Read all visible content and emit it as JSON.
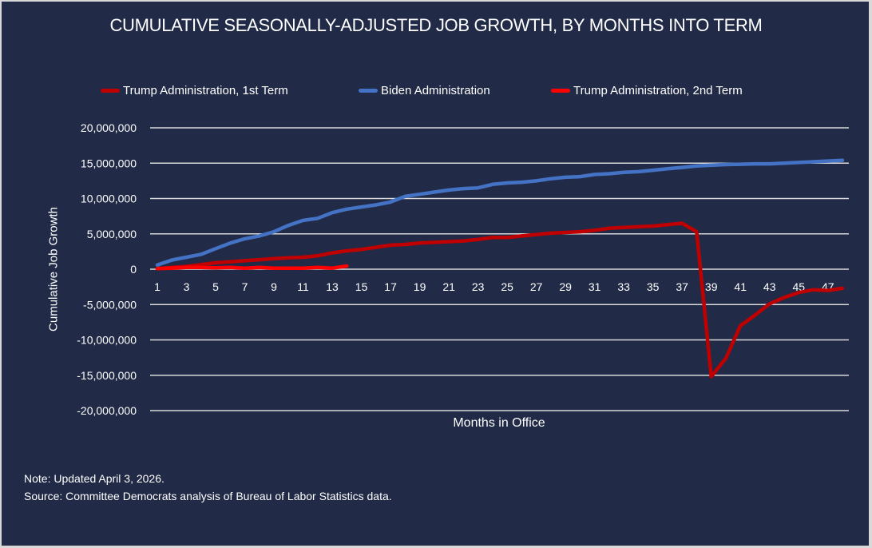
{
  "chart_data": {
    "type": "line",
    "title": "CUMULATIVE SEASONALLY-ADJUSTED JOB GROWTH, BY MONTHS INTO TERM",
    "xlabel": "Months in Office",
    "ylabel": "Cumulative Job Growth",
    "ylim": [
      -20000000,
      20000000
    ],
    "yticks": [
      20000000,
      15000000,
      10000000,
      5000000,
      0,
      -5000000,
      -10000000,
      -15000000,
      -20000000
    ],
    "ytick_labels": [
      "20,000,000",
      "15,000,000",
      "10,000,000",
      "5,000,000",
      "0",
      "-5,000,000",
      "-10,000,000",
      "-15,000,000",
      "-20,000,000"
    ],
    "xlim": [
      1,
      48
    ],
    "xtick_labels": [
      "1",
      "3",
      "5",
      "7",
      "9",
      "11",
      "13",
      "15",
      "17",
      "19",
      "21",
      "23",
      "25",
      "27",
      "29",
      "31",
      "33",
      "35",
      "37",
      "39",
      "41",
      "43",
      "45",
      "47"
    ],
    "grid": true,
    "legend_position": "top",
    "series": [
      {
        "name": "Trump Administration, 1st Term",
        "color": "#c00000",
        "x": [
          1,
          2,
          3,
          4,
          5,
          6,
          7,
          8,
          9,
          10,
          11,
          12,
          13,
          14,
          15,
          16,
          17,
          18,
          19,
          20,
          21,
          22,
          23,
          24,
          25,
          26,
          27,
          28,
          29,
          30,
          31,
          32,
          33,
          34,
          35,
          36,
          37,
          38,
          39,
          40,
          41,
          42,
          43,
          44,
          45,
          46,
          47,
          48
        ],
        "values": [
          70000,
          250000,
          400000,
          650000,
          900000,
          1050000,
          1200000,
          1350000,
          1500000,
          1600000,
          1700000,
          1900000,
          2300000,
          2600000,
          2800000,
          3100000,
          3400000,
          3500000,
          3700000,
          3800000,
          3900000,
          4000000,
          4200000,
          4500000,
          4500000,
          4700000,
          4900000,
          5100000,
          5200000,
          5300000,
          5500000,
          5800000,
          5900000,
          6000000,
          6100000,
          6300000,
          6500000,
          5300000,
          -15200000,
          -12600000,
          -8000000,
          -6500000,
          -4900000,
          -4000000,
          -3300000,
          -2900000,
          -3000000,
          -2700000
        ]
      },
      {
        "name": "Biden Administration",
        "color": "#4472c4",
        "x": [
          1,
          2,
          3,
          4,
          5,
          6,
          7,
          8,
          9,
          10,
          11,
          12,
          13,
          14,
          15,
          16,
          17,
          18,
          19,
          20,
          21,
          22,
          23,
          24,
          25,
          26,
          27,
          28,
          29,
          30,
          31,
          32,
          33,
          34,
          35,
          36,
          37,
          38,
          39,
          40,
          41,
          42,
          43,
          44,
          45,
          46,
          47,
          48
        ],
        "values": [
          600000,
          1300000,
          1700000,
          2100000,
          2900000,
          3700000,
          4300000,
          4700000,
          5300000,
          6200000,
          6900000,
          7200000,
          8000000,
          8500000,
          8800000,
          9100000,
          9500000,
          10300000,
          10600000,
          10900000,
          11200000,
          11400000,
          11500000,
          12000000,
          12200000,
          12300000,
          12500000,
          12800000,
          13000000,
          13100000,
          13400000,
          13500000,
          13700000,
          13800000,
          14000000,
          14200000,
          14400000,
          14600000,
          14700000,
          14800000,
          14850000,
          14900000,
          14900000,
          15000000,
          15100000,
          15200000,
          15300000,
          15400000
        ]
      },
      {
        "name": "Trump Administration, 2nd Term",
        "color": "#ff0000",
        "x": [
          1,
          2,
          3,
          4,
          5,
          6,
          7,
          8,
          9,
          10,
          11,
          12,
          13,
          14
        ],
        "values": [
          100000,
          150000,
          250000,
          250000,
          200000,
          250000,
          150000,
          250000,
          150000,
          150000,
          150000,
          250000,
          150000,
          450000
        ]
      }
    ]
  },
  "notes": {
    "note": "Note: Updated April 3, 2026.",
    "source": "Source: Committee Democrats analysis of Bureau of Labor Statistics data."
  },
  "theme": {
    "background": "#212a47",
    "gridline": "#d9d9d9",
    "text": "#ffffff"
  }
}
